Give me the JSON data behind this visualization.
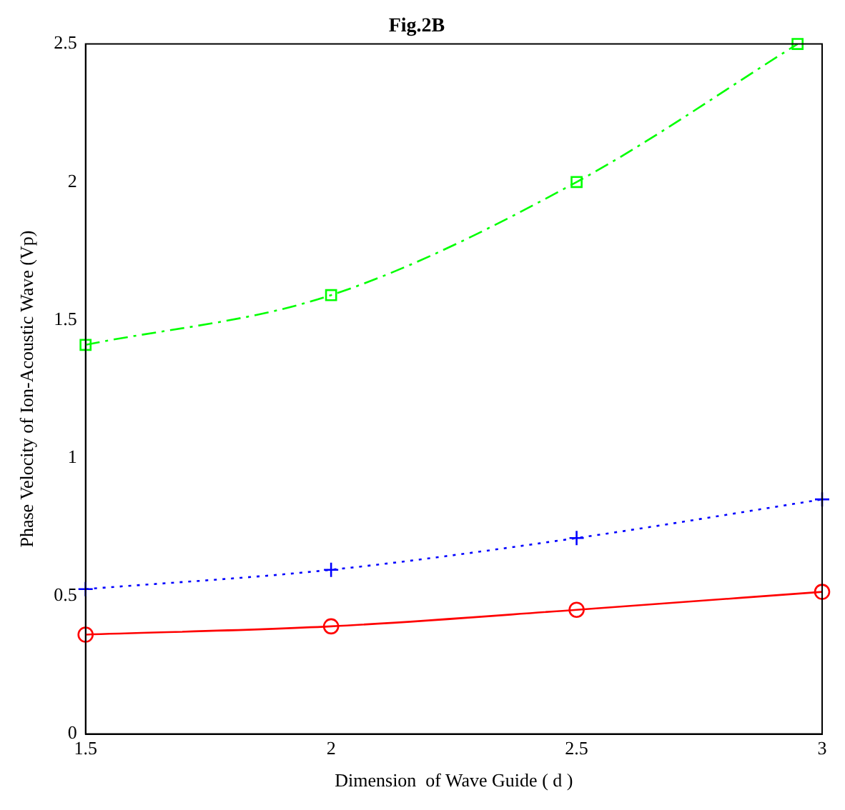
{
  "chart_data": {
    "type": "line",
    "title": "Fig.2B",
    "xlabel": "Dimension  of Wave Guide ( d )",
    "ylabel": "Phase Velocity of Ion-Acoustic Wave (Vp)",
    "xlim": [
      1.5,
      3
    ],
    "ylim": [
      0,
      2.5
    ],
    "xticks": [
      1.5,
      2,
      2.5,
      3
    ],
    "yticks": [
      0,
      0.5,
      1,
      1.5,
      2,
      2.5
    ],
    "grid": false,
    "legend": false,
    "series": [
      {
        "color": "#00ff00",
        "x": [
          1.5,
          2,
          2.5,
          2.95
        ],
        "values": [
          1.41,
          1.59,
          2.0,
          2.5
        ],
        "marker": "square",
        "line_style": "dashed"
      },
      {
        "color": "#0000ff",
        "x": [
          1.5,
          2,
          2.5,
          3
        ],
        "values": [
          0.525,
          0.595,
          0.71,
          0.85
        ],
        "marker": "cross",
        "line_style": "dotted"
      },
      {
        "color": "#ff0000",
        "x": [
          1.5,
          2,
          2.5,
          3
        ],
        "values": [
          0.36,
          0.39,
          0.45,
          0.515
        ],
        "marker": "circle",
        "line_style": "solid"
      }
    ]
  }
}
